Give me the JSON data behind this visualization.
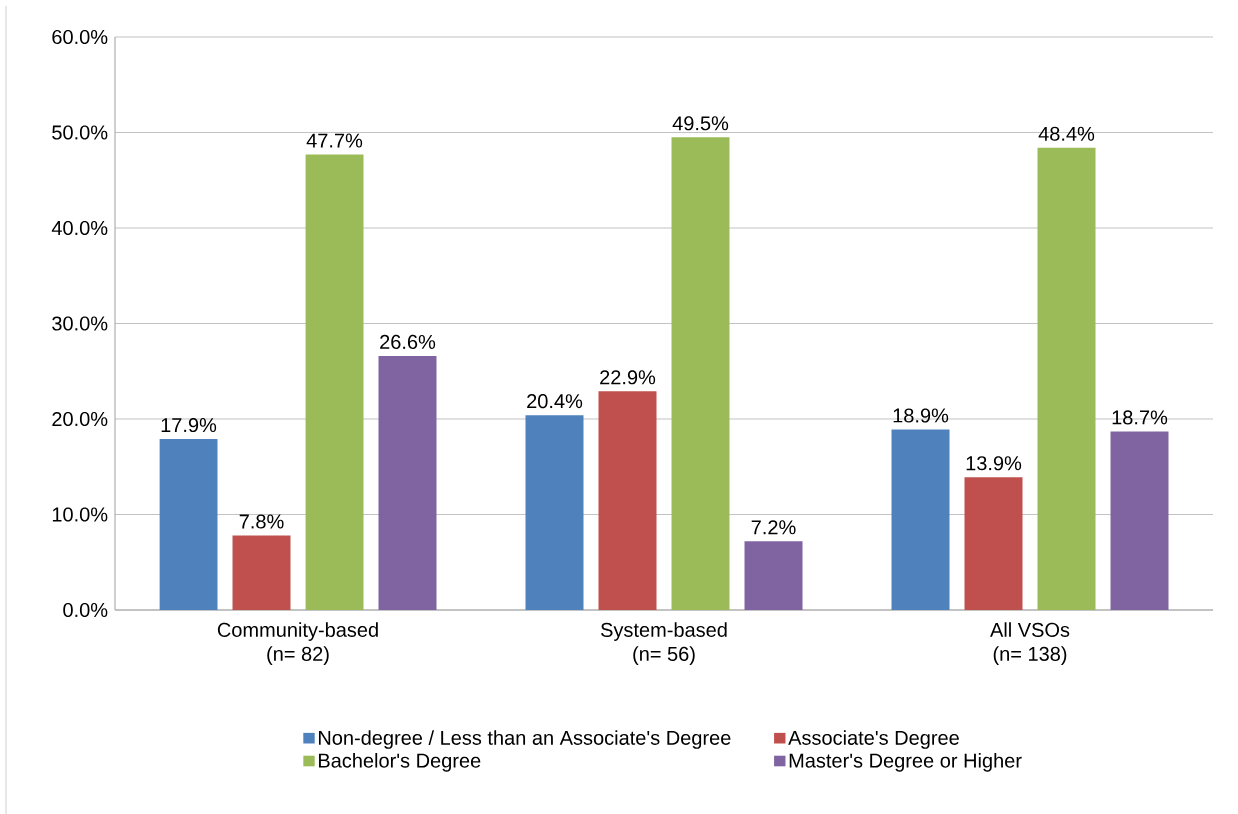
{
  "chart_data": {
    "type": "bar",
    "categories": [
      "Community-based\n(n= 82)",
      "System-based\n(n= 56)",
      "All VSOs\n(n= 138)"
    ],
    "series": [
      {
        "name": "Non-degree / Less than an Associate's Degree",
        "color": "#4f81bd",
        "values": [
          17.9,
          20.4,
          18.9
        ],
        "value_labels": [
          "17.9%",
          "20.4%",
          "18.9%"
        ]
      },
      {
        "name": "Associate's Degree",
        "color": "#c0504d",
        "values": [
          7.8,
          22.9,
          13.9
        ],
        "value_labels": [
          "7.8%",
          "22.9%",
          "13.9%"
        ]
      },
      {
        "name": "Bachelor's Degree",
        "color": "#9bbb59",
        "values": [
          47.7,
          49.5,
          48.4
        ],
        "value_labels": [
          "47.7%",
          "49.5%",
          "48.4%"
        ]
      },
      {
        "name": "Master's Degree or Higher",
        "color": "#8064a2",
        "values": [
          26.6,
          7.2,
          18.7
        ],
        "value_labels": [
          "26.6%",
          "7.2%",
          "18.7%"
        ]
      }
    ],
    "ylim": [
      0,
      60
    ],
    "yticks": [
      {
        "value": 0,
        "label": "0.0%"
      },
      {
        "value": 10,
        "label": "10.0%"
      },
      {
        "value": 20,
        "label": "20.0%"
      },
      {
        "value": 30,
        "label": "30.0%"
      },
      {
        "value": 40,
        "label": "40.0%"
      },
      {
        "value": 50,
        "label": "50.0%"
      },
      {
        "value": 60,
        "label": "60.0%"
      }
    ],
    "grid": "y",
    "legend": "bottom"
  }
}
